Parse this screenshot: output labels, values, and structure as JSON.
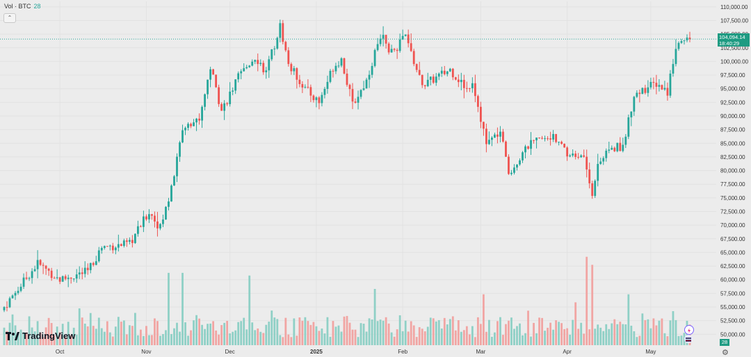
{
  "legend": {
    "label": "Vol · BTC",
    "value": "28"
  },
  "brand": {
    "name": "TradingView"
  },
  "price_tag": {
    "price": "104,094.14",
    "countdown": "18:40:29"
  },
  "volume_tag": "28",
  "colors": {
    "up": "#26a69a",
    "down": "#ef5350",
    "vol_up": "#8fd0c6",
    "vol_down": "#f1a5a3",
    "price_line": "#26a69a"
  },
  "chart_data": {
    "type": "candlestick",
    "title": "BTC",
    "current_price": 104094.14,
    "ylim": [
      48000,
      111000
    ],
    "yticks": [
      "110,000.00",
      "107,500.00",
      "105,000.00",
      "102,500.00",
      "100,000.00",
      "97,500.00",
      "95,000.00",
      "92,500.00",
      "90,000.00",
      "87,500.00",
      "85,000.00",
      "82,500.00",
      "80,000.00",
      "77,500.00",
      "75,000.00",
      "72,500.00",
      "70,000.00",
      "67,500.00",
      "65,000.00",
      "62,500.00",
      "60,000.00",
      "57,500.00",
      "55,000.00",
      "52,500.00",
      "50,000.00"
    ],
    "xticks": [
      "Oct",
      "Nov",
      "Dec",
      "2025",
      "Feb",
      "Mar",
      "Apr",
      "May"
    ],
    "xtick_index": [
      20,
      51,
      81,
      112,
      143,
      171,
      202,
      232
    ],
    "path_key_points": [
      [
        0,
        55000
      ],
      [
        12,
        63000
      ],
      [
        20,
        60000
      ],
      [
        30,
        61500
      ],
      [
        35,
        66000
      ],
      [
        45,
        66500
      ],
      [
        52,
        72500
      ],
      [
        56,
        69500
      ],
      [
        60,
        76500
      ],
      [
        64,
        87500
      ],
      [
        70,
        89500
      ],
      [
        74,
        99000
      ],
      [
        78,
        91000
      ],
      [
        84,
        97000
      ],
      [
        90,
        101000
      ],
      [
        94,
        98000
      ],
      [
        99,
        106500
      ],
      [
        102,
        99500
      ],
      [
        108,
        95000
      ],
      [
        113,
        92500
      ],
      [
        118,
        99000
      ],
      [
        121,
        100500
      ],
      [
        125,
        92000
      ],
      [
        130,
        96500
      ],
      [
        135,
        105000
      ],
      [
        139,
        101500
      ],
      [
        144,
        104500
      ],
      [
        150,
        95500
      ],
      [
        160,
        98500
      ],
      [
        166,
        95000
      ],
      [
        168,
        96500
      ],
      [
        173,
        85000
      ],
      [
        178,
        87000
      ],
      [
        181,
        79500
      ],
      [
        188,
        84500
      ],
      [
        196,
        86500
      ],
      [
        202,
        83000
      ],
      [
        208,
        82500
      ],
      [
        211,
        76000
      ],
      [
        213,
        81500
      ],
      [
        218,
        84000
      ],
      [
        222,
        84500
      ],
      [
        226,
        94000
      ],
      [
        234,
        96000
      ],
      [
        238,
        94500
      ],
      [
        241,
        103000
      ],
      [
        246,
        104100
      ]
    ],
    "volume_peaks": [
      {
        "index": 59,
        "value": 27
      },
      {
        "index": 64,
        "value": 27
      },
      {
        "index": 88,
        "value": 26
      },
      {
        "index": 133,
        "value": 21
      },
      {
        "index": 172,
        "value": 19
      },
      {
        "index": 209,
        "value": 33
      },
      {
        "index": 211,
        "value": 30
      },
      {
        "index": 224,
        "value": 19
      }
    ],
    "candle_count": 247,
    "volume_max": 35
  }
}
